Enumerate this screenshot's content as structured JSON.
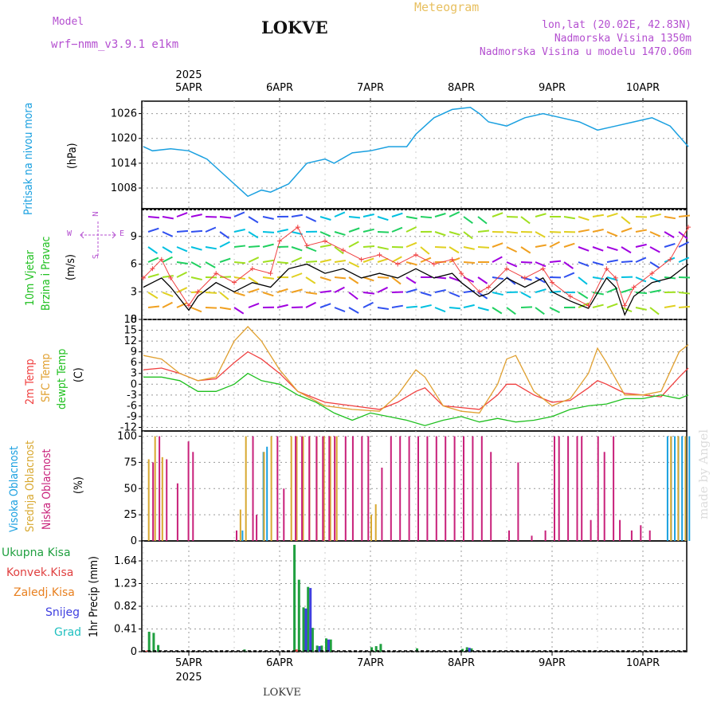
{
  "header": {
    "model_label": "Model",
    "model_value": "wrf−nmm_v3.9.1  e1km",
    "station": "LOKVE",
    "title": "Meteogram",
    "coords": "lon,lat (20.02E, 42.83N)",
    "altitude": "Nadmorska Visina 1350m",
    "model_altitude": "Nadmorska Visina u modelu 1470.06m"
  },
  "axis": {
    "year": "2025",
    "days": [
      "5APR",
      "6APR",
      "7APR",
      "8APR",
      "9APR",
      "10APR"
    ],
    "footer_station": "LOKVE"
  },
  "watermark": "made by Angel",
  "colors": {
    "pressure": "#1aa0e0",
    "wind_speed": "#000000",
    "wind_gust": "#f04040",
    "temp_2m": "#f04040",
    "temp_sfc": "#e0a030",
    "dewpoint": "#20c020",
    "cloud_high": "#1aa0e0",
    "cloud_mid": "#d8a830",
    "cloud_low": "#c8207a",
    "precip_total": "#20a040",
    "precip_conv": "#e04040",
    "precip_freezing": "#e88020",
    "snow": "#4040e0",
    "hail": "#20c0c0"
  },
  "panel_labels": {
    "pressure": {
      "name": "Pritisak na nivou mora",
      "unit": "(hPa)"
    },
    "wind": {
      "name1": "10m Vjetar",
      "name2": "Brzina i Pravac",
      "unit": "(m/s)",
      "compass_n": "N",
      "compass_s": "S",
      "compass_e": "E",
      "compass_w": "W"
    },
    "temp": {
      "name1": "2m Temp",
      "name2": "SFC Temp",
      "name3": "dewpt Temp",
      "unit": "(C)"
    },
    "cloud": {
      "name1": "Visoka Oblacnost",
      "name2": "Srednja Oblacnost",
      "name3": "Niska Oblacnost",
      "unit": "(%)"
    },
    "precip": {
      "unit": "1hr Precip (mm)",
      "legend": [
        "Ukupna Kisa",
        "Konvek.Kisa",
        "Zaledj.Kisa",
        "Snijeg",
        "Grad"
      ]
    }
  },
  "chart_data": [
    {
      "type": "line",
      "name": "pressure",
      "ylim": [
        1003,
        1029
      ],
      "yticks": [
        1008,
        1014,
        1020,
        1026
      ],
      "x_days": [
        4.5,
        4.6,
        4.8,
        5.0,
        5.2,
        5.4,
        5.6,
        5.65,
        5.8,
        5.9,
        6.1,
        6.3,
        6.5,
        6.6,
        6.8,
        7.0,
        7.2,
        7.4,
        7.5,
        7.7,
        7.9,
        8.1,
        8.2,
        8.3,
        8.5,
        8.7,
        8.9,
        9.1,
        9.3,
        9.5,
        9.7,
        9.9,
        10.1,
        10.3,
        10.5
      ],
      "values": [
        1018,
        1017,
        1017.5,
        1017,
        1015,
        1011,
        1007,
        1006,
        1007.5,
        1007,
        1009,
        1014,
        1015,
        1014,
        1016.5,
        1017,
        1018,
        1018,
        1021,
        1025,
        1027,
        1027.5,
        1026,
        1024,
        1023,
        1025,
        1026,
        1025,
        1024,
        1022,
        1023,
        1024,
        1025,
        1023,
        1018
      ]
    },
    {
      "type": "line",
      "name": "wind",
      "ylim": [
        0,
        12
      ],
      "yticks": [
        0,
        3,
        6,
        9
      ],
      "series": [
        {
          "name": "speed",
          "x": [
            4.5,
            4.6,
            4.7,
            4.8,
            5.0,
            5.1,
            5.3,
            5.5,
            5.7,
            5.9,
            6.1,
            6.3,
            6.5,
            6.7,
            6.9,
            7.1,
            7.3,
            7.5,
            7.7,
            7.9,
            8.0,
            8.2,
            8.3,
            8.5,
            8.7,
            8.9,
            9.0,
            9.2,
            9.4,
            9.6,
            9.7,
            9.8,
            9.9,
            10.1,
            10.3,
            10.5
          ],
          "values": [
            3.5,
            4.0,
            4.5,
            3.5,
            1.0,
            2.5,
            4.0,
            3.0,
            4.0,
            3.5,
            5.5,
            6.0,
            5.0,
            5.5,
            4.5,
            5.0,
            4.5,
            5.5,
            4.5,
            5.0,
            4.0,
            2.5,
            2.8,
            4.5,
            3.5,
            4.5,
            3.0,
            2.0,
            1.2,
            4.5,
            3.5,
            0.5,
            2.5,
            4.0,
            4.5,
            6.0
          ]
        },
        {
          "name": "gust",
          "x": [
            4.5,
            4.6,
            4.7,
            4.8,
            5.0,
            5.1,
            5.3,
            5.5,
            5.7,
            5.9,
            6.0,
            6.2,
            6.3,
            6.5,
            6.7,
            6.9,
            7.1,
            7.3,
            7.5,
            7.7,
            7.9,
            8.0,
            8.2,
            8.3,
            8.5,
            8.7,
            8.9,
            9.0,
            9.2,
            9.4,
            9.6,
            9.7,
            9.8,
            9.9,
            10.1,
            10.3,
            10.5
          ],
          "values": [
            4.5,
            5.5,
            6.5,
            4.5,
            1.5,
            3.0,
            5.0,
            4.0,
            5.5,
            5.0,
            8.5,
            10.0,
            8.0,
            8.5,
            7.5,
            6.5,
            7.0,
            6.0,
            7.0,
            6.0,
            6.5,
            5.0,
            3.0,
            3.5,
            5.5,
            4.5,
            5.5,
            4.0,
            2.5,
            1.5,
            5.5,
            4.5,
            1.5,
            3.5,
            5.0,
            6.5,
            10.0
          ]
        }
      ]
    },
    {
      "type": "line",
      "name": "temperature",
      "ylim": [
        -13,
        18
      ],
      "yticks": [
        -12,
        -9,
        -6,
        -3,
        0,
        3,
        6,
        9,
        12,
        15,
        18
      ],
      "series": [
        {
          "name": "2m",
          "x": [
            4.5,
            4.7,
            4.9,
            5.1,
            5.3,
            5.5,
            5.65,
            5.8,
            6.0,
            6.2,
            6.5,
            6.8,
            7.1,
            7.3,
            7.5,
            7.6,
            7.8,
            8.0,
            8.2,
            8.4,
            8.5,
            8.6,
            8.8,
            9.0,
            9.2,
            9.4,
            9.5,
            9.6,
            9.8,
            10.0,
            10.2,
            10.4,
            10.5
          ],
          "values": [
            4,
            4.5,
            3,
            1,
            1.5,
            6,
            9,
            7,
            3,
            -2,
            -5,
            -6,
            -7,
            -5,
            -2,
            -1,
            -6,
            -6.5,
            -7,
            -3,
            0,
            0,
            -3,
            -5,
            -4.5,
            -1,
            1,
            0,
            -2.5,
            -3,
            -3.5,
            2,
            4.5
          ]
        },
        {
          "name": "sfc",
          "x": [
            4.5,
            4.7,
            4.9,
            5.1,
            5.3,
            5.5,
            5.65,
            5.8,
            6.0,
            6.2,
            6.5,
            6.8,
            7.1,
            7.3,
            7.5,
            7.6,
            7.8,
            8.0,
            8.2,
            8.4,
            8.5,
            8.6,
            8.8,
            9.0,
            9.2,
            9.4,
            9.5,
            9.6,
            9.8,
            10.0,
            10.2,
            10.4,
            10.5
          ],
          "values": [
            8,
            7,
            3,
            1,
            2,
            12,
            16,
            12,
            4,
            -2,
            -6,
            -7,
            -7.5,
            -3,
            4,
            2,
            -6,
            -7.5,
            -8,
            0,
            7,
            8,
            -2,
            -6,
            -4,
            3,
            10,
            6,
            -3,
            -3,
            -2,
            9,
            11
          ]
        },
        {
          "name": "dewpt",
          "x": [
            4.5,
            4.7,
            4.9,
            5.1,
            5.3,
            5.5,
            5.65,
            5.8,
            6.0,
            6.2,
            6.4,
            6.6,
            6.8,
            7.0,
            7.2,
            7.4,
            7.6,
            7.8,
            8.0,
            8.2,
            8.4,
            8.6,
            8.8,
            9.0,
            9.2,
            9.4,
            9.6,
            9.8,
            10.0,
            10.2,
            10.4,
            10.5
          ],
          "values": [
            2,
            2,
            1,
            -2,
            -2,
            0,
            3,
            1,
            0,
            -3,
            -5,
            -8,
            -10,
            -8,
            -9,
            -10,
            -11.5,
            -10,
            -9,
            -10.5,
            -9.5,
            -10.5,
            -10,
            -9,
            -7,
            -6,
            -5.5,
            -4,
            -4,
            -3,
            -4,
            -3
          ]
        }
      ]
    },
    {
      "type": "bar",
      "name": "cloud_cover",
      "ylim": [
        0,
        105
      ],
      "yticks": [
        0,
        25,
        50,
        75,
        100
      ],
      "series": [
        {
          "name": "high",
          "x": [
            5.6,
            5.83,
            5.87,
            10.28,
            10.32,
            10.36,
            10.4,
            10.44,
            10.48,
            10.52
          ],
          "values": [
            10,
            85,
            90,
            100,
            100,
            100,
            100,
            100,
            100,
            100
          ]
        },
        {
          "name": "mid",
          "x": [
            4.55,
            4.62,
            4.7,
            5.56,
            5.62,
            5.82,
            5.9,
            6.12,
            6.18,
            6.25,
            6.32,
            6.4,
            6.48,
            6.55,
            6.62,
            7.0,
            7.05,
            10.3,
            10.38,
            10.46
          ],
          "values": [
            78,
            100,
            80,
            30,
            100,
            85,
            100,
            100,
            100,
            100,
            100,
            100,
            100,
            100,
            100,
            25,
            35,
            100,
            100,
            100
          ]
        },
        {
          "name": "low",
          "x": [
            4.58,
            4.65,
            4.73,
            4.85,
            4.97,
            5.02,
            5.5,
            5.68,
            5.72,
            5.95,
            6.02,
            6.15,
            6.22,
            6.3,
            6.38,
            6.45,
            6.52,
            6.58,
            6.7,
            6.78,
            6.88,
            6.95,
            7.1,
            7.2,
            7.3,
            7.4,
            7.5,
            7.6,
            7.7,
            7.8,
            7.9,
            8.0,
            8.1,
            8.2,
            8.3,
            8.5,
            8.6,
            8.75,
            8.9,
            9.0,
            9.05,
            9.15,
            9.25,
            9.3,
            9.4,
            9.48,
            9.55,
            9.65,
            9.72,
            9.85,
            9.95,
            10.05
          ],
          "values": [
            75,
            100,
            78,
            55,
            95,
            85,
            10,
            100,
            25,
            100,
            50,
            100,
            100,
            100,
            100,
            100,
            100,
            100,
            100,
            100,
            100,
            100,
            70,
            100,
            100,
            100,
            100,
            100,
            100,
            100,
            100,
            100,
            100,
            100,
            85,
            10,
            75,
            5,
            10,
            100,
            100,
            100,
            100,
            100,
            20,
            100,
            85,
            100,
            20,
            10,
            15,
            10
          ]
        }
      ]
    },
    {
      "type": "bar",
      "name": "precipitation",
      "ylim": [
        0,
        2.0
      ],
      "yticks": [
        0,
        0.41,
        0.82,
        1.23,
        1.64
      ],
      "series": [
        {
          "name": "total",
          "x": [
            4.55,
            4.6,
            4.65,
            5.6,
            6.15,
            6.2,
            6.25,
            6.3,
            6.35,
            6.4,
            6.45,
            6.5,
            6.55,
            7.0,
            7.05,
            7.1,
            7.5,
            8.0,
            8.05,
            8.1
          ],
          "values": [
            0.36,
            0.34,
            0.12,
            0.04,
            1.93,
            1.3,
            0.8,
            1.17,
            0.43,
            0.11,
            0.11,
            0.24,
            0.22,
            0.08,
            0.1,
            0.14,
            0.06,
            0.05,
            0.08,
            0.06
          ]
        },
        {
          "name": "konvek",
          "x": [
            4.55,
            6.2
          ],
          "values": [
            0.02,
            0.04
          ]
        },
        {
          "name": "zaledj",
          "x": [],
          "values": []
        },
        {
          "name": "snijeg",
          "x": [
            6.25,
            6.3,
            6.4,
            6.5,
            8.05
          ],
          "values": [
            0.78,
            1.15,
            0.1,
            0.22,
            0.07
          ]
        },
        {
          "name": "grad",
          "x": [],
          "values": []
        }
      ]
    }
  ]
}
